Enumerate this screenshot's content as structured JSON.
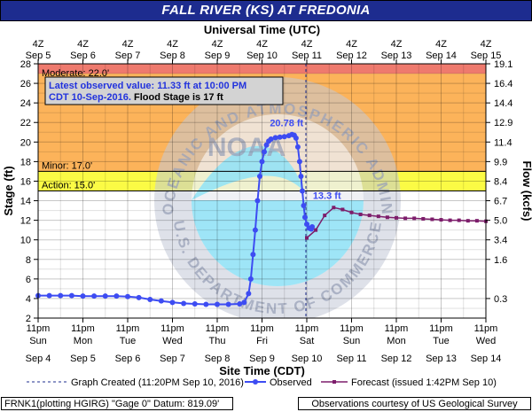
{
  "chart_data": {
    "type": "line",
    "title": "FALL RIVER (KS) AT FREDONIA",
    "top_axis_label": "Universal Time (UTC)",
    "top_ticks": [
      {
        "t": "4Z",
        "d": "Sep 5"
      },
      {
        "t": "4Z",
        "d": "Sep 6"
      },
      {
        "t": "4Z",
        "d": "Sep 7"
      },
      {
        "t": "4Z",
        "d": "Sep 8"
      },
      {
        "t": "4Z",
        "d": "Sep 9"
      },
      {
        "t": "4Z",
        "d": "Sep 10"
      },
      {
        "t": "4Z",
        "d": "Sep 11"
      },
      {
        "t": "4Z",
        "d": "Sep 12"
      },
      {
        "t": "4Z",
        "d": "Sep 13"
      },
      {
        "t": "4Z",
        "d": "Sep 14"
      },
      {
        "t": "4Z",
        "d": "Sep 15"
      }
    ],
    "xlabel": "Site Time (CDT)",
    "bottom_ticks": [
      {
        "t": "11pm",
        "w": "Sun",
        "d": "Sep 4"
      },
      {
        "t": "11pm",
        "w": "Mon",
        "d": "Sep 5"
      },
      {
        "t": "11pm",
        "w": "Tue",
        "d": "Sep 6"
      },
      {
        "t": "11pm",
        "w": "Wed",
        "d": "Sep 7"
      },
      {
        "t": "11pm",
        "w": "Thu",
        "d": "Sep 8"
      },
      {
        "t": "11pm",
        "w": "Fri",
        "d": "Sep 9"
      },
      {
        "t": "11pm",
        "w": "Sat",
        "d": "Sep 10"
      },
      {
        "t": "11pm",
        "w": "Sun",
        "d": "Sep 11"
      },
      {
        "t": "11pm",
        "w": "Mon",
        "d": "Sep 12"
      },
      {
        "t": "11pm",
        "w": "Tue",
        "d": "Sep 13"
      },
      {
        "t": "11pm",
        "w": "Wed",
        "d": "Sep 14"
      }
    ],
    "ylabel": "Stage (ft)",
    "ylim": [
      2,
      28
    ],
    "yticks": [
      2,
      4,
      6,
      8,
      10,
      12,
      14,
      16,
      18,
      20,
      22,
      24,
      26,
      28
    ],
    "y2label": "Flow (kcfs)",
    "y2ticks": [
      {
        "stage": 4,
        "label": "0.3"
      },
      {
        "stage": 8,
        "label": "1.6"
      },
      {
        "stage": 10,
        "label": "3.4"
      },
      {
        "stage": 12,
        "label": "5.0"
      },
      {
        "stage": 14,
        "label": "6.7"
      },
      {
        "stage": 16,
        "label": "8.4"
      },
      {
        "stage": 18,
        "label": "9.9"
      },
      {
        "stage": 20,
        "label": "11.4"
      },
      {
        "stage": 22,
        "label": "12.9"
      },
      {
        "stage": 24,
        "label": "14.4"
      },
      {
        "stage": 26,
        "label": "16.4"
      },
      {
        "stage": 28,
        "label": "19.1"
      }
    ],
    "xlim_days": [
      0,
      10
    ],
    "grid": true,
    "zones": [
      {
        "name": "Moderate",
        "label": "Moderate: 22.0'",
        "from": 27,
        "to": 28,
        "color": "#ee7a6e"
      },
      {
        "name": "Major",
        "label": "",
        "from": 17,
        "to": 27,
        "color": "#fcb35a"
      },
      {
        "name": "Minor",
        "label": "Minor: 17.0'",
        "from": 15,
        "to": 17,
        "color": "#fbfb45"
      }
    ],
    "action_label": "Action: 15.0'",
    "action_stage": 15,
    "minor_stage": 17,
    "graph_created_day": 5.98,
    "series": [
      {
        "name": "Observed",
        "color": "#3d4cf2",
        "marker": "circle",
        "points": [
          [
            0.0,
            4.3
          ],
          [
            0.25,
            4.3
          ],
          [
            0.5,
            4.3
          ],
          [
            0.75,
            4.3
          ],
          [
            1.0,
            4.25
          ],
          [
            1.25,
            4.25
          ],
          [
            1.5,
            4.25
          ],
          [
            1.75,
            4.25
          ],
          [
            2.0,
            4.2
          ],
          [
            2.25,
            4.1
          ],
          [
            2.5,
            3.9
          ],
          [
            2.75,
            3.75
          ],
          [
            3.0,
            3.6
          ],
          [
            3.25,
            3.5
          ],
          [
            3.5,
            3.45
          ],
          [
            3.75,
            3.4
          ],
          [
            4.0,
            3.4
          ],
          [
            4.25,
            3.4
          ],
          [
            4.5,
            3.45
          ],
          [
            4.6,
            3.6
          ],
          [
            4.7,
            4.5
          ],
          [
            4.75,
            6.0
          ],
          [
            4.8,
            8.5
          ],
          [
            4.85,
            11.0
          ],
          [
            4.9,
            14.0
          ],
          [
            4.95,
            16.5
          ],
          [
            5.0,
            18.0
          ],
          [
            5.05,
            19.0
          ],
          [
            5.1,
            19.7
          ],
          [
            5.15,
            20.1
          ],
          [
            5.2,
            20.3
          ],
          [
            5.3,
            20.45
          ],
          [
            5.4,
            20.5
          ],
          [
            5.5,
            20.55
          ],
          [
            5.6,
            20.65
          ],
          [
            5.67,
            20.78
          ],
          [
            5.72,
            20.7
          ],
          [
            5.76,
            20.4
          ],
          [
            5.8,
            19.5
          ],
          [
            5.84,
            18.0
          ],
          [
            5.87,
            16.5
          ],
          [
            5.9,
            15.0
          ],
          [
            5.93,
            13.5
          ],
          [
            5.96,
            12.3
          ],
          [
            6.0,
            11.6
          ],
          [
            6.05,
            11.2
          ],
          [
            6.1,
            11.1
          ],
          [
            6.12,
            11.33
          ]
        ]
      },
      {
        "name": "Forecast (issued 1:42PM Sep 10)",
        "color": "#7d1d6b",
        "marker": "square",
        "points": [
          [
            6.0,
            10.2
          ],
          [
            6.2,
            11.0
          ],
          [
            6.4,
            12.5
          ],
          [
            6.6,
            13.3
          ],
          [
            6.8,
            13.1
          ],
          [
            7.0,
            12.8
          ],
          [
            7.2,
            12.6
          ],
          [
            7.4,
            12.5
          ],
          [
            7.6,
            12.4
          ],
          [
            7.8,
            12.3
          ],
          [
            8.0,
            12.25
          ],
          [
            8.2,
            12.2
          ],
          [
            8.4,
            12.2
          ],
          [
            8.6,
            12.15
          ],
          [
            8.8,
            12.1
          ],
          [
            9.0,
            12.05
          ],
          [
            9.2,
            12.0
          ],
          [
            9.4,
            12.0
          ],
          [
            9.6,
            11.95
          ],
          [
            9.8,
            11.95
          ],
          [
            10.0,
            11.9
          ]
        ]
      }
    ],
    "annotations": [
      {
        "text": "20.78 ft",
        "day": 5.55,
        "stage": 21.6,
        "color": "#3d4cf2"
      },
      {
        "text": "13.3 ft",
        "day": 6.45,
        "stage": 14.2,
        "color": "#3d4cf2"
      }
    ],
    "info_box": {
      "line1": "Latest observed value: 11.33 ft at 10:00 PM",
      "line2a": "CDT 10-Sep-2016.",
      "line2b": " Flood Stage is 17 ft"
    },
    "legend": {
      "graph_created": "Graph Created (11:20PM Sep 10, 2016)",
      "observed": "Observed",
      "forecast": "Forecast (issued 1:42PM Sep 10)"
    }
  },
  "footer": {
    "left": "FRNK1(plotting HGIRG) \"Gage 0\" Datum: 819.09'",
    "right": "Observations courtesy of US Geological Survey"
  },
  "watermark": {
    "ring_text": "NATIONAL OCEANIC AND ATMOSPHERIC ADMINISTRATION",
    "bottom_text": "U.S. DEPARTMENT OF COMMERCE",
    "center_text": "NOAA"
  }
}
